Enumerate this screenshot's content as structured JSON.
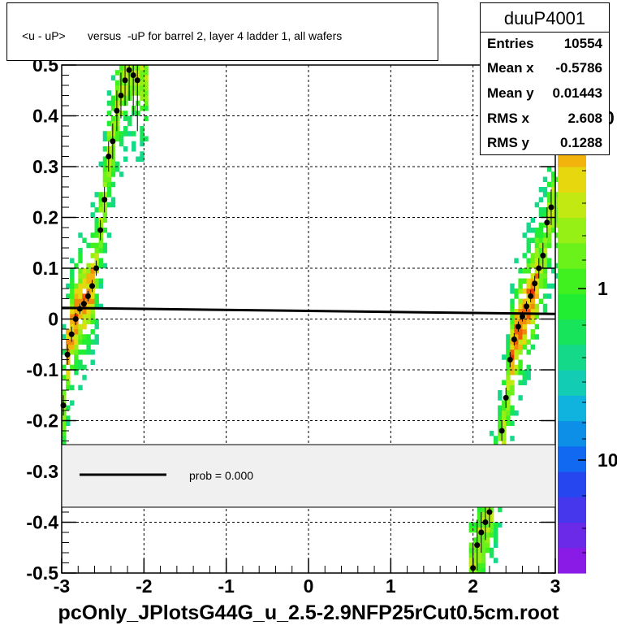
{
  "chart_data": {
    "type": "heatmap",
    "title": "<u - uP>       versus  -uP for barrel 2, layer 4 ladder 1, all wafers",
    "xlim": [
      -3,
      3
    ],
    "ylim": [
      -0.5,
      0.5
    ],
    "x_ticks": [
      "-3",
      "-2",
      "-1",
      "0",
      "1",
      "2",
      "3"
    ],
    "y_ticks": [
      "-0.5",
      "-0.4",
      "-0.3",
      "-0.2",
      "-0.1",
      "0",
      "0.1",
      "0.2",
      "0.3",
      "0.4",
      "0.5"
    ],
    "z_scale": "log",
    "z_ticks": [
      "1",
      "10"
    ],
    "z_tick_partial": "0",
    "grid": true,
    "stats": {
      "name": "duuP4001",
      "entries": [
        "Entries",
        "10554"
      ],
      "mean_x": [
        "Mean x",
        "-0.5786"
      ],
      "mean_y": [
        "Mean y",
        "0.01443"
      ],
      "rms_x": [
        "RMS x",
        "2.608"
      ],
      "rms_y": [
        "RMS y",
        "0.1288"
      ]
    },
    "legend": {
      "label": "prob = 0.000",
      "position": "bottom"
    },
    "fit_line": {
      "x": [
        -3,
        3
      ],
      "y": [
        0.022,
        0.01
      ]
    },
    "profile": {
      "x": [
        -2.98,
        -2.93,
        -2.88,
        -2.83,
        -2.78,
        -2.73,
        -2.68,
        -2.63,
        -2.58,
        -2.53,
        -2.48,
        -2.43,
        -2.38,
        -2.33,
        -2.28,
        -2.23,
        -2.18,
        -2.13,
        -2.08,
        2.0,
        2.05,
        2.1,
        2.15,
        2.2,
        2.25,
        2.3,
        2.35,
        2.4,
        2.45,
        2.5,
        2.55,
        2.6,
        2.65,
        2.7,
        2.75,
        2.8,
        2.85,
        2.9,
        2.95
      ],
      "y": [
        -0.17,
        -0.07,
        -0.03,
        0.0,
        0.02,
        0.03,
        0.045,
        0.065,
        0.1,
        0.175,
        0.235,
        0.32,
        0.35,
        0.41,
        0.44,
        0.47,
        0.49,
        0.48,
        0.47,
        -0.49,
        -0.445,
        -0.42,
        -0.4,
        -0.38,
        -0.33,
        -0.28,
        -0.22,
        -0.155,
        -0.08,
        -0.04,
        -0.015,
        0.005,
        0.025,
        0.045,
        0.07,
        0.1,
        0.125,
        0.19,
        0.22
      ],
      "err": [
        0.02,
        0.02,
        0.015,
        0.012,
        0.01,
        0.01,
        0.01,
        0.012,
        0.015,
        0.02,
        0.025,
        0.03,
        0.035,
        0.04,
        0.045,
        0.05,
        0.06,
        0.08,
        0.1,
        0.05,
        0.05,
        0.04,
        0.035,
        0.03,
        0.03,
        0.025,
        0.02,
        0.02,
        0.015,
        0.012,
        0.01,
        0.01,
        0.01,
        0.012,
        0.015,
        0.02,
        0.025,
        0.03,
        0.035
      ]
    },
    "bands": [
      {
        "x_from": -3.0,
        "x_to": -2.0,
        "y_from": -0.25,
        "y_to": 0.5
      },
      {
        "x_from": 1.95,
        "x_to": 3.0,
        "y_from": -0.5,
        "y_to": 0.3
      }
    ]
  },
  "footer": "pcOnly_JPlotsG44G_u_2.5-2.9NFP25rCut0.5cm.root"
}
